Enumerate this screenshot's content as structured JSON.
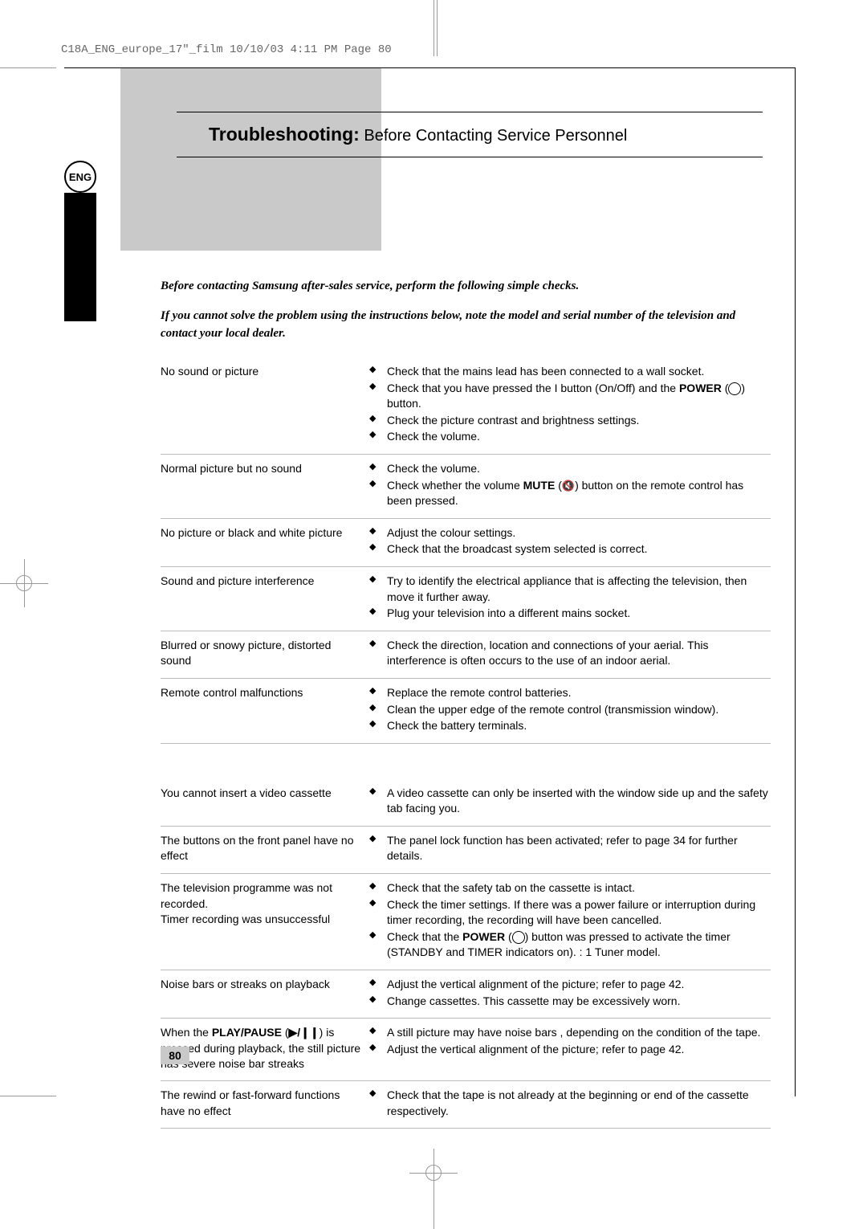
{
  "meta": {
    "header_line": "C18A_ENG_europe_17\"_film  10/10/03  4:11 PM  Page 80"
  },
  "lang_badge": "ENG",
  "title": {
    "bold": "Troubleshooting:",
    "rest": " Before Contacting Service Personnel"
  },
  "intro": {
    "line1": "Before contacting Samsung after-sales service, perform the following simple checks.",
    "line2": "If you cannot solve the problem using the instructions below, note the model and serial number of the television and contact your local dealer."
  },
  "colors": {
    "gray_block": "#c9c9c9",
    "divider": "#bbbbbb",
    "text": "#000000"
  },
  "section1": [
    {
      "problem": "No sound or picture",
      "solutions": [
        "Check that the mains lead has been connected to a wall socket.",
        "Check that you have pressed the  I  button (On/Off) and the <b>POWER</b> (<span class='inline-icon'></span>) button.",
        "Check the picture contrast and brightness settings.",
        "Check the volume."
      ]
    },
    {
      "problem": "Normal picture but no sound",
      "solutions": [
        "Check the volume.",
        "Check whether the volume <b>MUTE</b> (<span class='inline-mute'>🔇</span>) button on the remote control has been pressed."
      ]
    },
    {
      "problem": "No picture or black and white picture",
      "solutions": [
        "Adjust the colour settings.",
        "Check that the broadcast system selected is correct."
      ]
    },
    {
      "problem": "Sound and picture interference",
      "solutions": [
        "Try to identify the electrical appliance that is affecting the television, then move it further away.",
        "Plug your television into a different mains socket."
      ]
    },
    {
      "problem": "Blurred or snowy picture, distorted sound",
      "solutions": [
        "Check the direction, location and connections of your aerial. This interference is often occurs to the use of an indoor aerial."
      ]
    },
    {
      "problem": "Remote control malfunctions",
      "solutions": [
        "Replace the remote control batteries.",
        "Clean the upper edge of the remote control (transmission window).",
        "Check the battery terminals."
      ]
    }
  ],
  "section2": [
    {
      "problem": "You cannot insert a video cassette",
      "solutions": [
        "A video cassette can only be inserted with the window side up and the safety tab facing you."
      ]
    },
    {
      "problem": "The buttons on the front panel have no effect",
      "solutions": [
        "The panel lock function has been activated; refer to page 34 for further details."
      ]
    },
    {
      "problem": "The television programme was not recorded.\nTimer recording was unsuccessful",
      "solutions": [
        "Check that the safety tab on the cassette is intact.",
        "Check the timer settings. If there was a power failure or interruption during timer recording, the recording will have been cancelled.",
        "Check that the <b>POWER</b> (<span class='inline-icon'></span>) button was pressed to activate the timer (STANDBY and TIMER indicators on). : 1 Tuner model."
      ]
    },
    {
      "problem": "Noise bars or streaks on playback",
      "solutions": [
        "Adjust the vertical alignment of the picture; refer to page 42.",
        "Change cassettes. This cassette may be excessively worn."
      ]
    },
    {
      "problem": "When the <b>PLAY/PAUSE</b> (<span class='inline-play'>▶/❙❙</span>) is pressed during playback, the still picture has severe  noise bar  streaks",
      "solutions": [
        "A still picture may have  noise bars , depending on the condition of the tape.",
        "Adjust the vertical alignment of the picture; refer to page 42."
      ]
    },
    {
      "problem": "The rewind or fast-forward functions have no effect",
      "solutions": [
        "Check that the tape is not already at the beginning or end of the cassette respectively."
      ]
    }
  ],
  "page_number": "80"
}
